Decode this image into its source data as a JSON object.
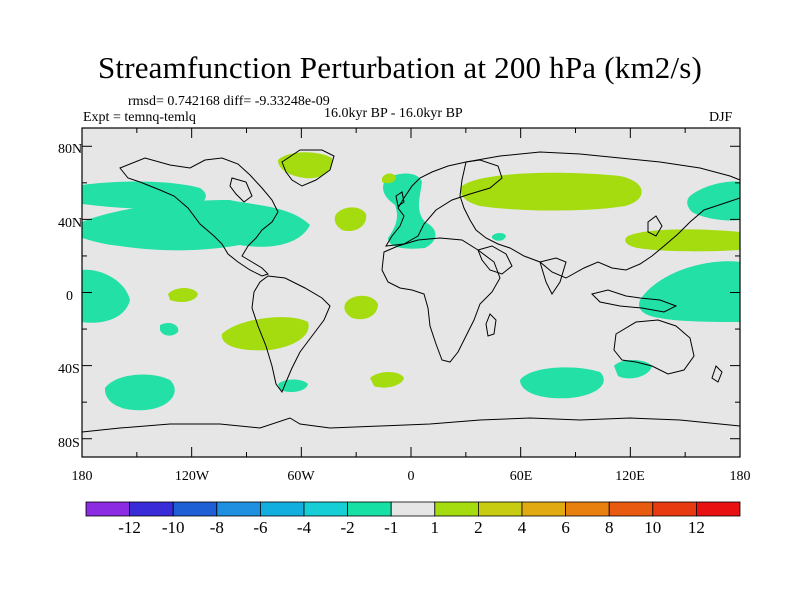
{
  "title": "Streamfunction Perturbation at 200 hPa (km2/s)",
  "stats": "rmsd= 0.742168 diff= -9.33248e-09",
  "experiment": "Expt = temnq-temlq",
  "period": "16.0kyr BP - 16.0kyr BP",
  "season": "DJF",
  "y_ticks": [
    "80N",
    "40N",
    "0",
    "40S",
    "80S"
  ],
  "x_ticks": [
    "180",
    "120W",
    "60W",
    "0",
    "60E",
    "120E",
    "180"
  ],
  "colorbar": {
    "labels": [
      "-12",
      "-10",
      "-8",
      "-6",
      "-4",
      "-2",
      "-1",
      "1",
      "2",
      "4",
      "6",
      "8",
      "10",
      "12"
    ],
    "colors": [
      "#8b2be2",
      "#3a2bd8",
      "#1f5fd6",
      "#1f8fe0",
      "#12aee0",
      "#16cfd6",
      "#16e0a4",
      "#e6e6e6",
      "#a5dc10",
      "#c8cc10",
      "#e0aa10",
      "#e88010",
      "#e85a10",
      "#e83a10",
      "#e81010"
    ]
  },
  "colors": {
    "negative_fill": "#22e0a6",
    "positive_fill": "#a5dc10",
    "map_background": "#e6e6e6"
  }
}
